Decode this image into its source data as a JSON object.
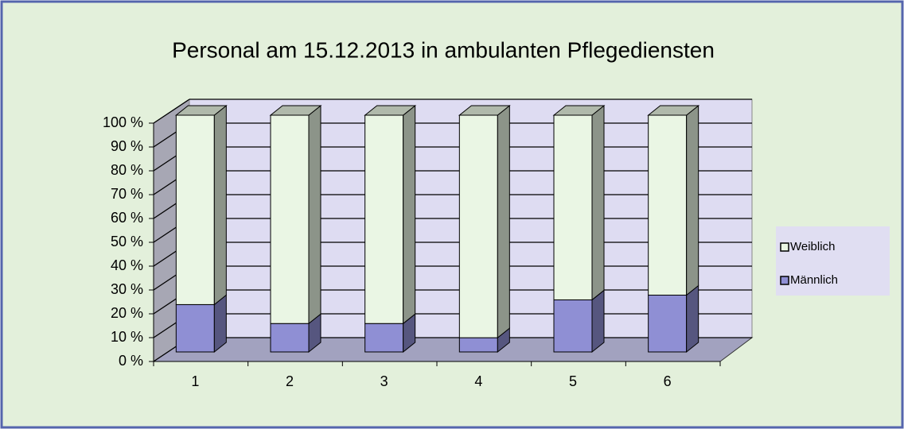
{
  "chart_data": {
    "type": "bar3d_stacked",
    "title": "Personal am 15.12.2013 in ambulanten Pflegediensten",
    "categories": [
      "1",
      "2",
      "3",
      "4",
      "5",
      "6"
    ],
    "series": [
      {
        "name": "Männlich",
        "color": "#8f8fd4",
        "values": [
          20,
          12,
          12,
          6,
          22,
          24
        ]
      },
      {
        "name": "Weiblich",
        "color": "#eaf6e4",
        "values": [
          80,
          88,
          88,
          94,
          78,
          76
        ]
      }
    ],
    "ylim": [
      0,
      100
    ],
    "yticks": [
      {
        "value": 0,
        "label": "0 %"
      },
      {
        "value": 10,
        "label": "10 %"
      },
      {
        "value": 20,
        "label": "20 %"
      },
      {
        "value": 30,
        "label": "30 %"
      },
      {
        "value": 40,
        "label": "40 %"
      },
      {
        "value": 50,
        "label": "50 %"
      },
      {
        "value": 60,
        "label": "60 %"
      },
      {
        "value": 70,
        "label": "70 %"
      },
      {
        "value": 80,
        "label": "80 %"
      },
      {
        "value": 90,
        "label": "90 %"
      },
      {
        "value": 100,
        "label": "100 %"
      }
    ],
    "grid": true,
    "legend": "right"
  }
}
